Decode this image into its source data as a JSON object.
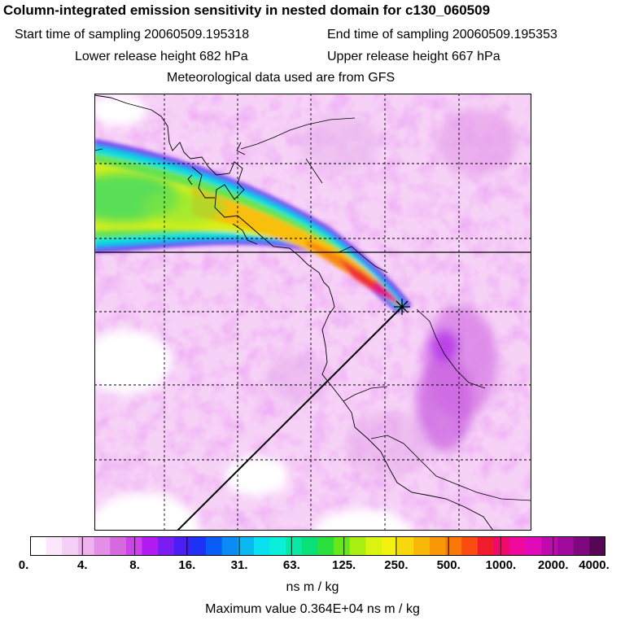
{
  "header": {
    "title": "Column-integrated emission sensitivity in nested domain for c130_060509",
    "start_time": "Start time of sampling 20060509.195318",
    "end_time": "End time of sampling 20060509.195353",
    "lower_release": "Lower release height  682 hPa",
    "upper_release": "Upper release height  667 hPa",
    "met_data": "Meteorological data used are from GFS"
  },
  "colorbar": {
    "ticks": [
      "0.",
      "4.",
      "8.",
      "16.",
      "31.",
      "63.",
      "125.",
      "250.",
      "500.",
      "1000.",
      "2000.",
      "4000."
    ],
    "colors": [
      "#ffffff",
      "#fbe6fb",
      "#f6cff6",
      "#eeb2ee",
      "#e48fe6",
      "#d86ae0",
      "#cc44e8",
      "#b21cf0",
      "#7a1cf2",
      "#4a1ef4",
      "#1e32f6",
      "#0a5cf6",
      "#0a8cf4",
      "#0ab8f2",
      "#0ae0f0",
      "#0af0d8",
      "#0ae8a8",
      "#0ae078",
      "#2ae03c",
      "#68e81a",
      "#a8ee12",
      "#d8f410",
      "#f4f010",
      "#f8d80c",
      "#f8b808",
      "#f89808",
      "#f87808",
      "#f84c10",
      "#f01c2c",
      "#f00a6a",
      "#f00a9c",
      "#e00ab8",
      "#c00ab0",
      "#a00a9c",
      "#80087e",
      "#560654"
    ],
    "units": "ns m / kg",
    "max_value": "Maximum value  0.364E+04 ns m / kg"
  }
}
